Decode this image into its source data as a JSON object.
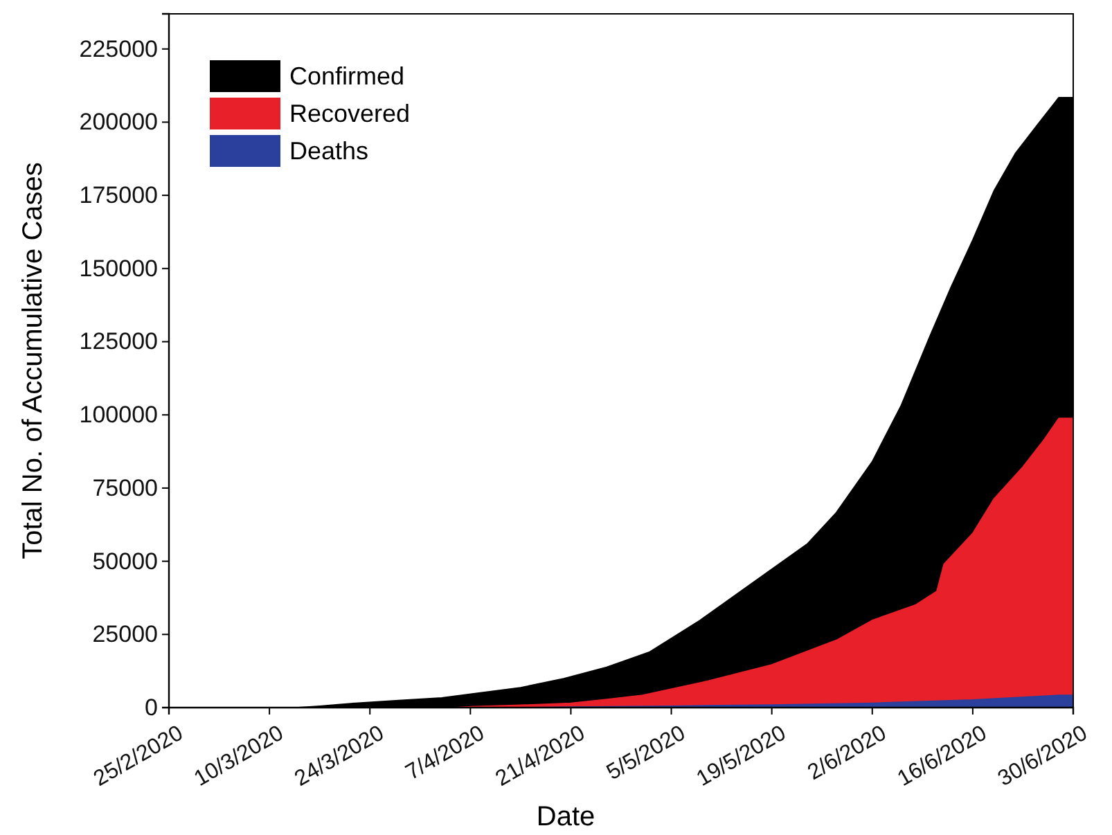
{
  "chart_data": {
    "type": "area",
    "xlabel": "Date",
    "ylabel": "Total No. of Accumulative Cases",
    "xlim": [
      "2020-02-25",
      "2020-06-30"
    ],
    "xticks": [
      {
        "value": "2020-02-25",
        "label": "25/2/2020"
      },
      {
        "value": "2020-03-10",
        "label": "10/3/2020"
      },
      {
        "value": "2020-03-24",
        "label": "24/3/2020"
      },
      {
        "value": "2020-04-07",
        "label": "7/4/2020"
      },
      {
        "value": "2020-04-21",
        "label": "21/4/2020"
      },
      {
        "value": "2020-05-05",
        "label": "5/5/2020"
      },
      {
        "value": "2020-05-19",
        "label": "19/5/2020"
      },
      {
        "value": "2020-06-02",
        "label": "2/6/2020"
      },
      {
        "value": "2020-06-16",
        "label": "16/6/2020"
      },
      {
        "value": "2020-06-30",
        "label": "30/6/2020"
      }
    ],
    "ylim": [
      0,
      237000
    ],
    "yticks": [
      0,
      25000,
      50000,
      75000,
      100000,
      125000,
      150000,
      175000,
      200000,
      225000
    ],
    "legend": "top left",
    "grid": false,
    "series": [
      {
        "name": "Confirmed",
        "color": "#000000",
        "x": [
          "2020-03-14",
          "2020-03-17",
          "2020-03-22",
          "2020-03-28",
          "2020-04-03",
          "2020-04-08",
          "2020-04-14",
          "2020-04-20",
          "2020-04-26",
          "2020-05-02",
          "2020-05-09",
          "2020-05-16",
          "2020-05-24",
          "2020-05-28",
          "2020-06-02",
          "2020-06-06",
          "2020-06-10",
          "2020-06-13",
          "2020-06-16",
          "2020-06-19",
          "2020-06-22",
          "2020-06-25",
          "2020-06-28",
          "2020-06-30"
        ],
        "values": [
          0,
          500,
          1500,
          2400,
          3300,
          4900,
          6800,
          9900,
          13800,
          19000,
          29800,
          42000,
          56000,
          66600,
          84000,
          103000,
          126600,
          143700,
          159700,
          176700,
          189500,
          199000,
          208400,
          208400
        ]
      },
      {
        "name": "Recovered",
        "color": "#e8202a",
        "x": [
          "2020-04-05",
          "2020-04-07",
          "2020-04-14",
          "2020-04-21",
          "2020-04-26",
          "2020-05-01",
          "2020-05-10",
          "2020-05-19",
          "2020-05-28",
          "2020-06-02",
          "2020-06-08",
          "2020-06-11",
          "2020-06-12",
          "2020-06-16",
          "2020-06-19",
          "2020-06-23",
          "2020-06-26",
          "2020-06-28",
          "2020-06-30"
        ],
        "values": [
          0,
          300,
          800,
          1500,
          2800,
          4200,
          9000,
          14600,
          23000,
          29800,
          35000,
          39700,
          49000,
          59500,
          71400,
          82200,
          91700,
          98800,
          98800
        ]
      },
      {
        "name": "Deaths",
        "color": "#2b3f9c",
        "x": [
          "2020-04-14",
          "2020-04-21",
          "2020-05-05",
          "2020-05-19",
          "2020-06-02",
          "2020-06-16",
          "2020-06-28",
          "2020-06-30"
        ],
        "values": [
          0,
          200,
          500,
          900,
          1500,
          2600,
          4200,
          4200
        ]
      }
    ]
  }
}
